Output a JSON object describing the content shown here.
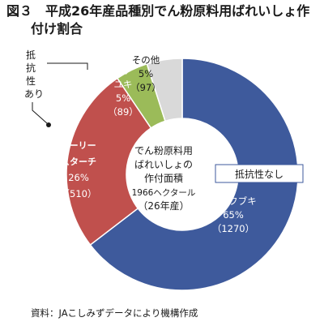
{
  "title": {
    "line1": "図３　平成26年産品種別でん粉原料用ばれいしょ作",
    "line2": "付け割合"
  },
  "source": "資料：JAこしみずデータにより機構作成",
  "chart_data": {
    "type": "pie",
    "center_label": [
      "でん粉原料用",
      "ばれいしょの",
      "作付面積",
      "1966ヘクタール",
      "（26年産）"
    ],
    "group_label": "抵抗性なし",
    "slices": [
      {
        "name": "コナフブキ",
        "name_lines": [
          "コナフブキ"
        ],
        "percent": "65%",
        "count": "（1270）",
        "value": 1270,
        "color": "#3e5a9c"
      },
      {
        "name": "アーリースターチ",
        "name_lines": [
          "アーリー",
          "スターチ"
        ],
        "percent": "26%",
        "count": "（510）",
        "value": 510,
        "color": "#c0504d"
      },
      {
        "name": "コナユキ",
        "name_lines": [
          "コナ",
          "ユキ"
        ],
        "percent": "5%",
        "count": "（89）",
        "value": 89,
        "color": "#9bbb59"
      },
      {
        "name": "その他",
        "name_lines": [
          "その他"
        ],
        "percent": "5%",
        "count": "（97）",
        "value": 97,
        "color": "#d9d9d9"
      }
    ],
    "annotation": {
      "text": [
        "抵",
        "抗",
        "性",
        "あり"
      ]
    }
  }
}
